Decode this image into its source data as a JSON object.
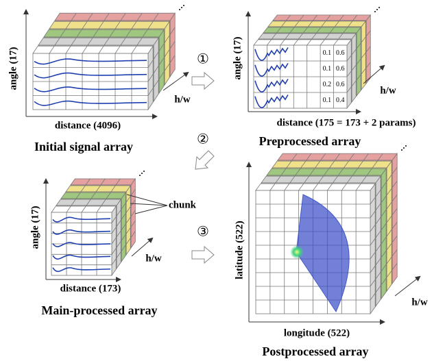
{
  "panels": [
    {
      "y_label": "angle (17)",
      "x_label": "distance (4096)",
      "depth_label": "h/w",
      "caption": "Initial signal array"
    },
    {
      "y_label": "angle (17)",
      "x_label": "distance (175 = 173 + 2 params)",
      "depth_label": "h/w",
      "caption": "Preprocessed array"
    },
    {
      "y_label": "angle (17)",
      "x_label": "distance (173)",
      "depth_label": "h/w",
      "caption": "Main-processed array"
    },
    {
      "y_label": "latitude (522)",
      "x_label": "longitude (522)",
      "depth_label": "h/w",
      "caption": "Postprocessed array"
    }
  ],
  "steps": [
    "①",
    "②",
    "③"
  ],
  "chunk_label": "chunk",
  "params": [
    [
      0.1,
      0.6
    ],
    [
      0.1,
      0.6
    ],
    [
      0.2,
      0.6
    ],
    [
      0.1,
      0.4
    ]
  ]
}
